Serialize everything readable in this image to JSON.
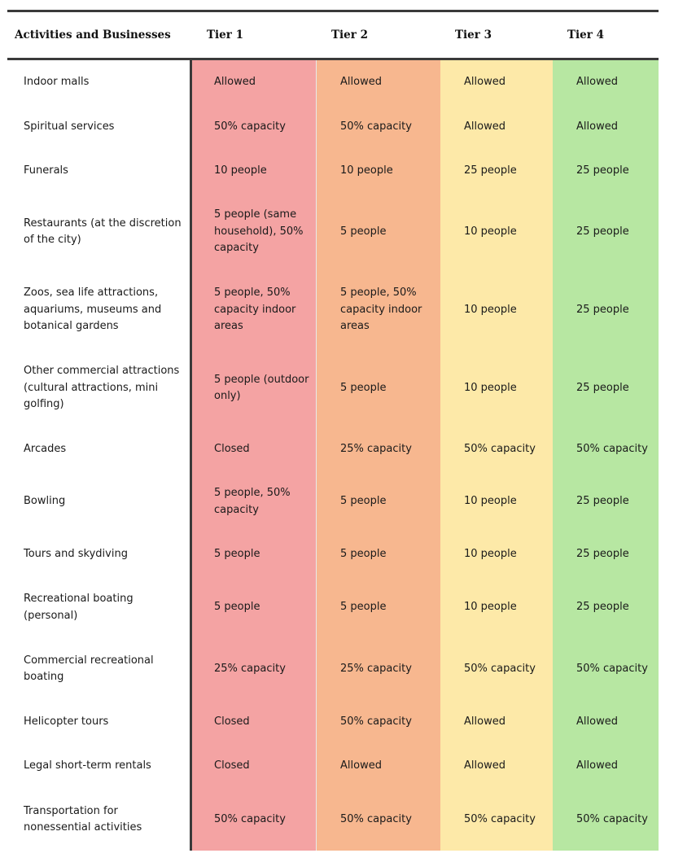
{
  "table": {
    "headers": [
      "Activities and Businesses",
      "Tier 1",
      "Tier 2",
      "Tier 3",
      "Tier 4"
    ],
    "rows": [
      {
        "activity": "Indoor malls",
        "t1": "Allowed",
        "t2": "Allowed",
        "t3": "Allowed",
        "t4": "Allowed"
      },
      {
        "activity": "Spiritual services",
        "t1": "50% capacity",
        "t2": "50% capacity",
        "t3": "Allowed",
        "t4": "Allowed"
      },
      {
        "activity": "Funerals",
        "t1": "10 people",
        "t2": "10 people",
        "t3": "25 people",
        "t4": "25 people"
      },
      {
        "activity": "Restaurants (at the discretion of the city)",
        "t1": "5 people (same household), 50% capacity",
        "t2": "5 people",
        "t3": "10 people",
        "t4": "25 people"
      },
      {
        "activity": "Zoos, sea life attractions, aquariums, museums and botanical gardens",
        "t1": "5 people, 50% capacity indoor areas",
        "t2": "5 people, 50% capacity indoor areas",
        "t3": "10 people",
        "t4": "25 people"
      },
      {
        "activity": "Other commercial attractions (cultural attractions, mini golfing)",
        "t1": "5 people (outdoor only)",
        "t2": "5 people",
        "t3": "10 people",
        "t4": "25 people"
      },
      {
        "activity": "Arcades",
        "t1": "Closed",
        "t2": "25% capacity",
        "t3": "50% capacity",
        "t4": "50% capacity"
      },
      {
        "activity": "Bowling",
        "t1": "5 people, 50% capacity",
        "t2": "5 people",
        "t3": "10 people",
        "t4": "25 people"
      },
      {
        "activity": "Tours and skydiving",
        "t1": "5 people",
        "t2": "5 people",
        "t3": "10 people",
        "t4": "25 people"
      },
      {
        "activity": "Recreational boating (personal)",
        "t1": "5 people",
        "t2": "5 people",
        "t3": "10 people",
        "t4": "25 people"
      },
      {
        "activity": "Commercial recreational boating",
        "t1": "25% capacity",
        "t2": "25% capacity",
        "t3": "50% capacity",
        "t4": "50% capacity"
      },
      {
        "activity": "Helicopter tours",
        "t1": "Closed",
        "t2": "50% capacity",
        "t3": "Allowed",
        "t4": "Allowed"
      },
      {
        "activity": "Legal short-term rentals",
        "t1": "Closed",
        "t2": "Allowed",
        "t3": "Allowed",
        "t4": "Allowed"
      },
      {
        "activity": "Transportation for nonessential activities",
        "t1": "50% capacity",
        "t2": "50% capacity",
        "t3": "50% capacity",
        "t4": "50% capacity"
      }
    ]
  },
  "colors": {
    "tier1": "#f4a3a3",
    "tier2": "#f7b78f",
    "tier3": "#fde9a8",
    "tier4": "#b7e7a2",
    "rule": "#3a3a3a"
  }
}
